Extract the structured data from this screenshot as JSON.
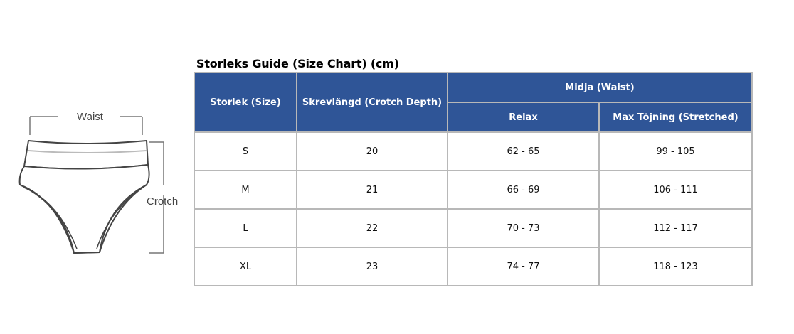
{
  "illustration": {
    "waist_label": "Waist",
    "crotch_label": "Crotch"
  },
  "chart": {
    "title": "Storleks Guide (Size Chart) (cm)",
    "headers": {
      "size": "Storlek (Size)",
      "crotch_depth": "Skrevlängd (Crotch Depth)",
      "waist_group": "Midja (Waist)",
      "relax": "Relax",
      "stretched": "Max Töjning (Stretched)"
    },
    "rows": [
      {
        "size": "S",
        "crotch_depth": "20",
        "relax": "62 - 65",
        "stretched": "99 - 105"
      },
      {
        "size": "M",
        "crotch_depth": "21",
        "relax": "66 - 69",
        "stretched": "106 - 111"
      },
      {
        "size": "L",
        "crotch_depth": "22",
        "relax": "70 - 73",
        "stretched": "112 - 117"
      },
      {
        "size": "XL",
        "crotch_depth": "23",
        "relax": "74 - 77",
        "stretched": "118 - 123"
      }
    ]
  },
  "colors": {
    "header_bg": "#2f5597",
    "header_text": "#ffffff",
    "grid": "#b8b8b8"
  }
}
